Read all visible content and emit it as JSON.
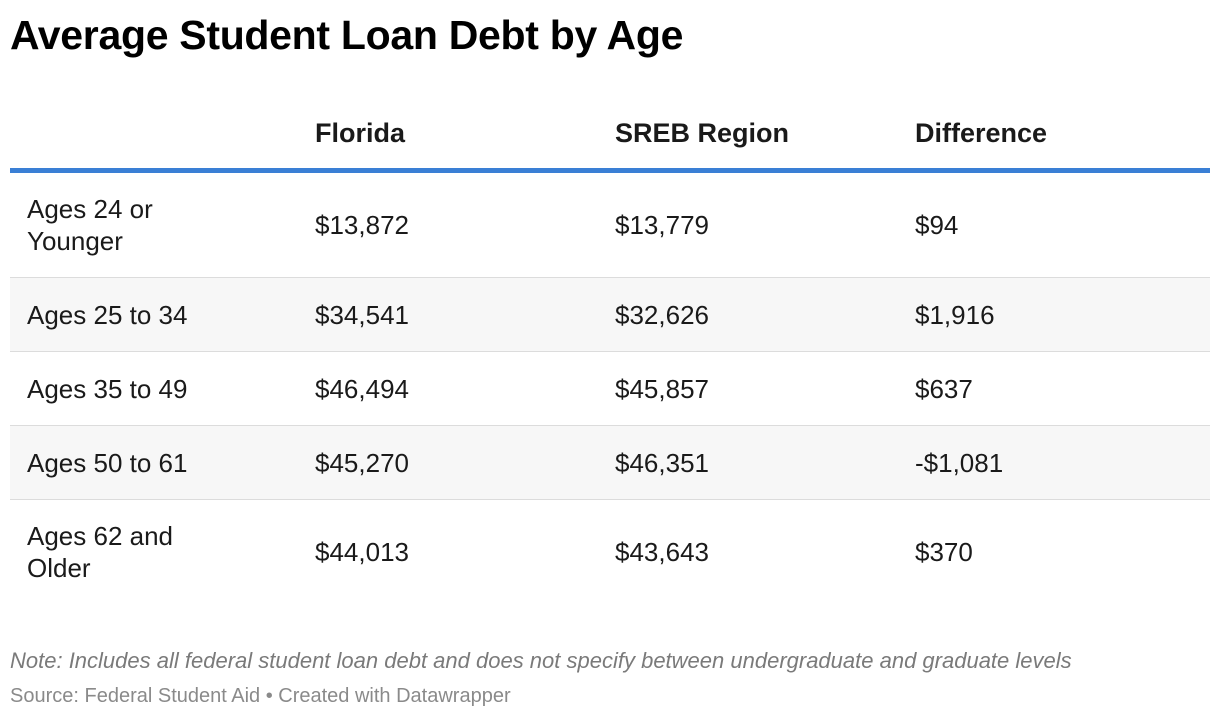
{
  "chart_data": {
    "type": "table",
    "title": "Average Student Loan Debt by Age",
    "columns": [
      "",
      "Florida",
      "SREB Region",
      "Difference"
    ],
    "rows": [
      {
        "label": "Ages 24 or Younger",
        "florida": "$13,872",
        "sreb": "$13,779",
        "difference": "$94"
      },
      {
        "label": "Ages 25 to 34",
        "florida": "$34,541",
        "sreb": "$32,626",
        "difference": "$1,916"
      },
      {
        "label": "Ages 35 to 49",
        "florida": "$46,494",
        "sreb": "$45,857",
        "difference": "$637"
      },
      {
        "label": "Ages 50 to 61",
        "florida": "$45,270",
        "sreb": "$46,351",
        "difference": "-$1,081"
      },
      {
        "label": "Ages 62 and Older",
        "florida": "$44,013",
        "sreb": "$43,643",
        "difference": "$370"
      }
    ],
    "note": "Note: Includes all federal student loan debt and does not specify between undergraduate and graduate levels",
    "source": "Source: Federal Student Aid • Created with Datawrapper"
  },
  "colors": {
    "header_rule": "#3a7fd5",
    "alt_row_background": "#f7f7f7",
    "row_divider": "#dcdcdc"
  }
}
